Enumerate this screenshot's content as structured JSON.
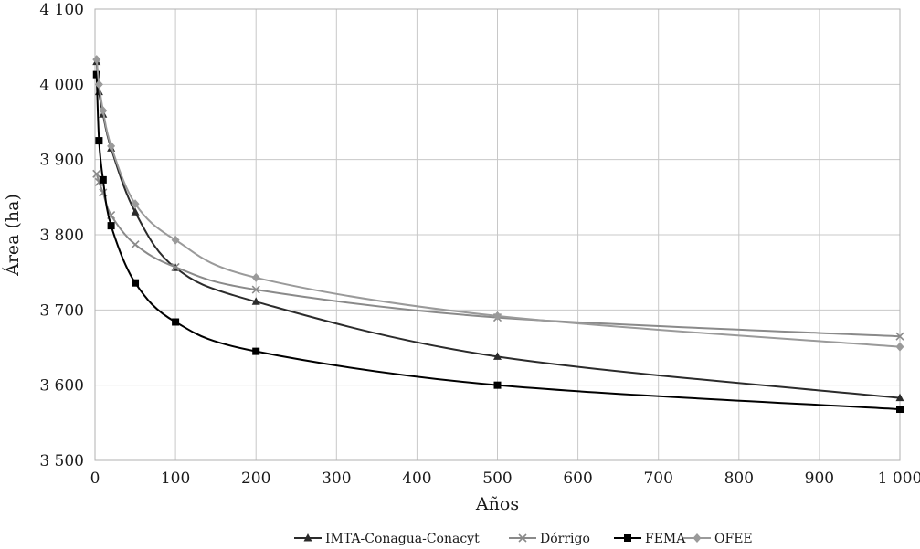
{
  "chart_data": {
    "type": "line",
    "title": "",
    "xlabel": "Años",
    "ylabel": "Área (ha)",
    "xlim": [
      0,
      1000
    ],
    "ylim": [
      3500,
      4100
    ],
    "x_ticks": [
      0,
      100,
      200,
      300,
      400,
      500,
      600,
      700,
      800,
      900,
      1000
    ],
    "x_tick_labels": [
      "0",
      "100",
      "200",
      "300",
      "400",
      "500",
      "600",
      "700",
      "800",
      "900",
      "1 000"
    ],
    "y_ticks": [
      3500,
      3600,
      3700,
      3800,
      3900,
      4000,
      4100
    ],
    "y_tick_labels": [
      "3 500",
      "3 600",
      "3 700",
      "3 800",
      "3 900",
      "4 000",
      "4 100"
    ],
    "grid": true,
    "legend_position": "bottom",
    "series": [
      {
        "name": "IMTA-Conagua-Conacyt",
        "color": "#2b2b2b",
        "marker": "triangle",
        "x": [
          2,
          5,
          10,
          20,
          50,
          100,
          200,
          500,
          1000
        ],
        "y": [
          4030,
          3990,
          3960,
          3915,
          3830,
          3756,
          3711,
          3638,
          3583
        ]
      },
      {
        "name": "Dórrigo",
        "color": "#8a8a8a",
        "marker": "x",
        "x": [
          2,
          5,
          10,
          20,
          50,
          100,
          200,
          500,
          1000
        ],
        "y": [
          3881,
          3870,
          3856,
          3826,
          3787,
          3757,
          3727,
          3690,
          3665
        ]
      },
      {
        "name": "FEMA",
        "color": "#000000",
        "marker": "square",
        "x": [
          2,
          5,
          10,
          20,
          50,
          100,
          200,
          500,
          1000
        ],
        "y": [
          4013,
          3925,
          3873,
          3812,
          3736,
          3684,
          3645,
          3600,
          3568
        ]
      },
      {
        "name": "OFEE",
        "color": "#9a9a9a",
        "marker": "diamond",
        "x": [
          2,
          5,
          10,
          20,
          50,
          100,
          200,
          500,
          1000
        ],
        "y": [
          4033,
          4000,
          3965,
          3918,
          3841,
          3793,
          3743,
          3692,
          3651
        ]
      }
    ]
  }
}
